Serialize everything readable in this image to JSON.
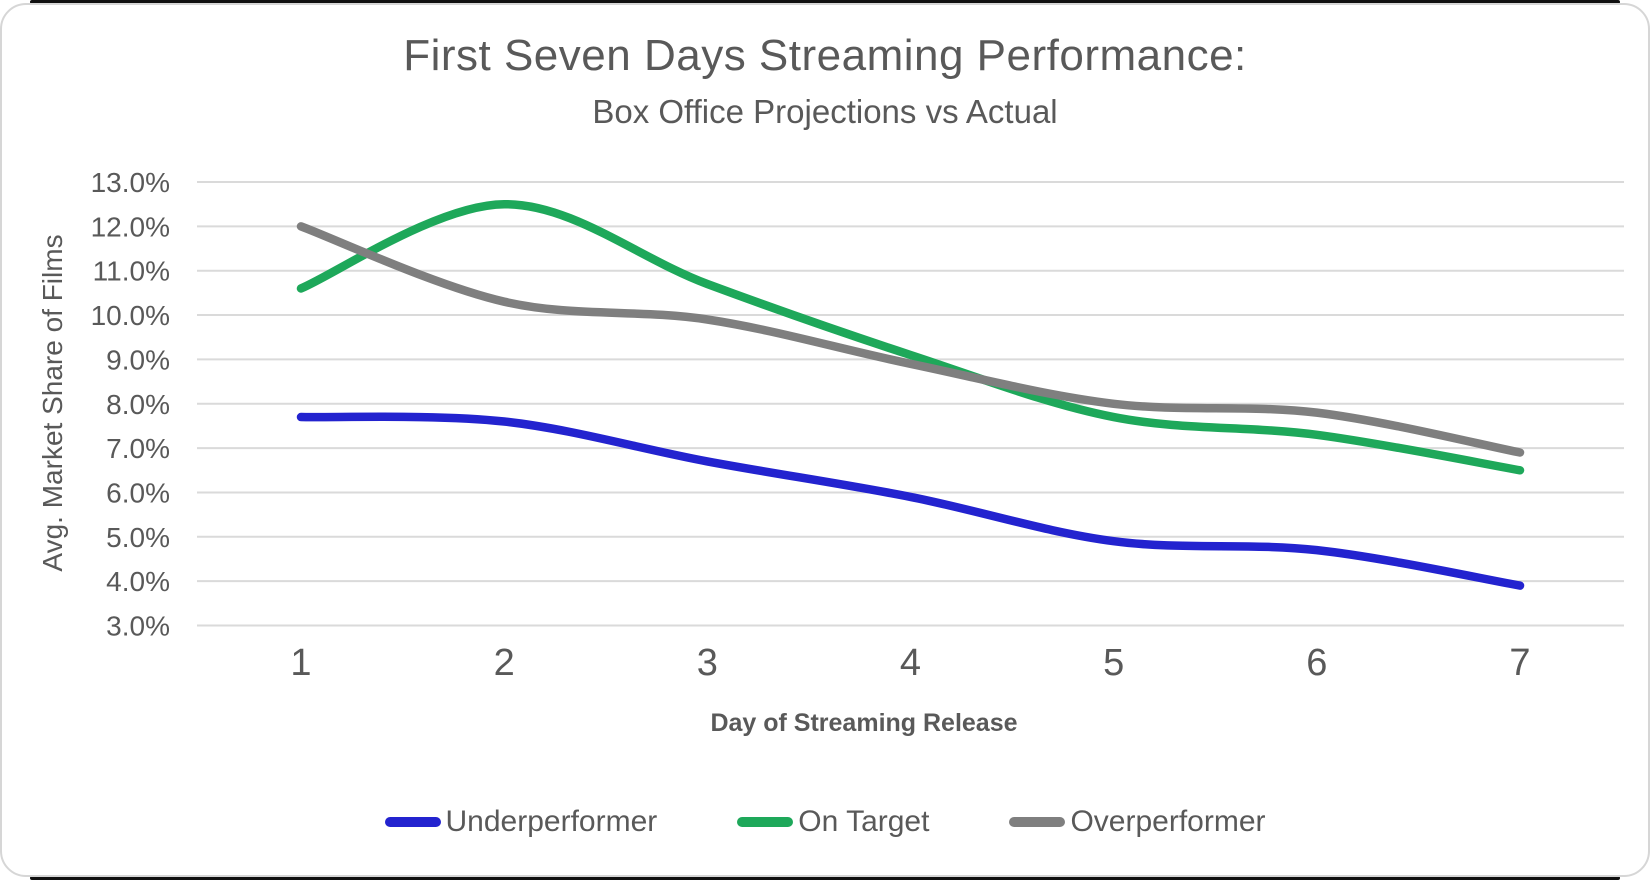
{
  "window": {
    "background": "#ffffff",
    "card_border_color": "#d6d6d6",
    "edge_bar_color": "#101010"
  },
  "header": {
    "title": "First Seven Days Streaming Performance:",
    "subtitle": "Box Office Projections vs Actual"
  },
  "chart_data": {
    "type": "line",
    "title": "First Seven Days Streaming Performance:",
    "subtitle": "Box Office Projections vs Actual",
    "xlabel": "Day of Streaming Release",
    "ylabel": "Avg. Market Share of Films",
    "categories": [
      "1",
      "2",
      "3",
      "4",
      "5",
      "6",
      "7"
    ],
    "series": [
      {
        "name": "Underperformer",
        "color": "#2323CF",
        "values": [
          7.7,
          7.6,
          6.7,
          5.9,
          4.9,
          4.7,
          3.9
        ]
      },
      {
        "name": "On Target",
        "color": "#1EA85A",
        "values": [
          10.6,
          12.5,
          10.7,
          9.1,
          7.7,
          7.3,
          6.5
        ]
      },
      {
        "name": "Overperformer",
        "color": "#7F7F7F",
        "values": [
          12.0,
          10.3,
          9.9,
          8.9,
          8.0,
          7.8,
          6.9
        ]
      }
    ],
    "ylim": [
      3.0,
      13.0
    ],
    "ytick_step": 1.0,
    "ytick_labels": [
      "13.0%",
      "12.0%",
      "11.0%",
      "10.0%",
      "9.0%",
      "8.0%",
      "7.0%",
      "6.0%",
      "5.0%",
      "4.0%",
      "3.0%"
    ],
    "ytick_format": "one_decimal_percent",
    "grid": "horizontal",
    "gridline_color": "#DADADA",
    "text_color": "#595959",
    "legend_position": "bottom",
    "smooth_lines": true
  }
}
